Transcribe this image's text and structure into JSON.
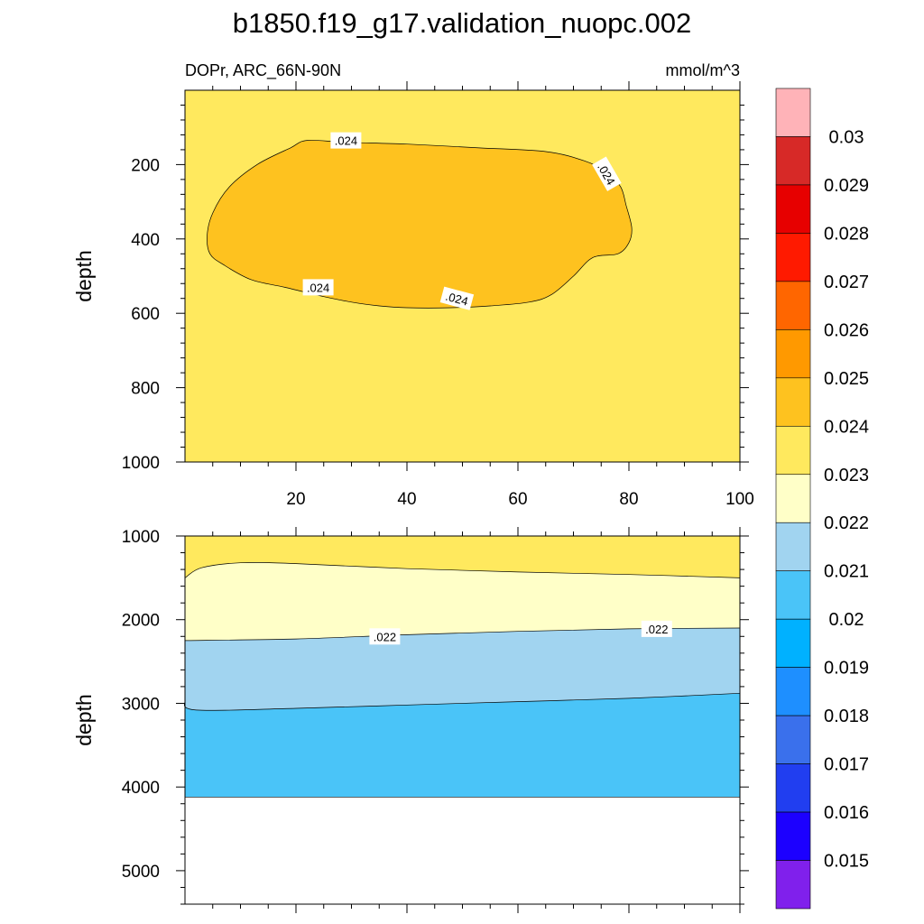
{
  "chart_data": {
    "type": "heatmap",
    "title": "b1850.f19_g17.validation_nuopc.002",
    "subtitle_left": "DOPr, ARC_66N-90N",
    "subtitle_right": "mmol/m^3",
    "x_range": [
      0,
      100
    ],
    "x_ticks": [
      20,
      40,
      60,
      80,
      100
    ],
    "x_tick_labels": [
      "20",
      "40",
      "60",
      "80",
      "100"
    ],
    "panels": [
      {
        "name": "upper",
        "ylabel": "depth",
        "y_range": [
          0,
          1000
        ],
        "y_ticks": [
          200,
          400,
          600,
          800,
          1000
        ],
        "y_tick_labels": [
          "200",
          "400",
          "600",
          "800",
          "1000"
        ],
        "background_fill": "#FFE95E",
        "regions": [
          {
            "level": "0.024-0.025",
            "color": "#FEC21F",
            "outline": [
              [
                4,
                390
              ],
              [
                5,
                330
              ],
              [
                8,
                260
              ],
              [
                13,
                200
              ],
              [
                19,
                155
              ],
              [
                22,
                135
              ],
              [
                29,
                140
              ],
              [
                40,
                145
              ],
              [
                53,
                155
              ],
              [
                65,
                165
              ],
              [
                72,
                190
              ],
              [
                76,
                220
              ],
              [
                78.5,
                260
              ],
              [
                79.5,
                310
              ],
              [
                80.5,
                370
              ],
              [
                80,
                410
              ],
              [
                78,
                440
              ],
              [
                73.5,
                450
              ],
              [
                70,
                500
              ],
              [
                66,
                550
              ],
              [
                62,
                570
              ],
              [
                55,
                580
              ],
              [
                48,
                585
              ],
              [
                40,
                585
              ],
              [
                35,
                580
              ],
              [
                30,
                570
              ],
              [
                25,
                555
              ],
              [
                18,
                530
              ],
              [
                12,
                510
              ],
              [
                7,
                470
              ],
              [
                4.5,
                440
              ]
            ]
          }
        ],
        "contour_labels": [
          {
            "text": ".024",
            "x": 29,
            "y": 135,
            "angle": 0
          },
          {
            "text": ".024",
            "x": 76,
            "y": 225,
            "angle": 60
          },
          {
            "text": ".024",
            "x": 24,
            "y": 530,
            "angle": 0
          },
          {
            "text": ".024",
            "x": 49,
            "y": 560,
            "angle": 15
          }
        ]
      },
      {
        "name": "lower",
        "ylabel": "depth",
        "y_range": [
          1000,
          5400
        ],
        "y_ticks": [
          1000,
          2000,
          3000,
          4000,
          5000
        ],
        "y_tick_labels": [
          "1000",
          "2000",
          "3000",
          "4000",
          "5000"
        ],
        "bottom_depth": 4120,
        "bands": [
          {
            "level": "0.023-0.024",
            "color": "#FFE95E",
            "upper": [
              [
                0,
                1000
              ],
              [
                100,
                1000
              ]
            ],
            "lower": [
              [
                0,
                1500
              ],
              [
                3,
                1380
              ],
              [
                10,
                1320
              ],
              [
                20,
                1330
              ],
              [
                40,
                1390
              ],
              [
                60,
                1430
              ],
              [
                80,
                1460
              ],
              [
                100,
                1500
              ]
            ]
          },
          {
            "level": "0.022-0.023",
            "color": "#FFFFC8",
            "upper": [
              [
                0,
                1500
              ],
              [
                3,
                1380
              ],
              [
                10,
                1320
              ],
              [
                20,
                1330
              ],
              [
                40,
                1390
              ],
              [
                60,
                1430
              ],
              [
                80,
                1460
              ],
              [
                100,
                1500
              ]
            ],
            "lower": [
              [
                0,
                2250
              ],
              [
                20,
                2230
              ],
              [
                40,
                2180
              ],
              [
                60,
                2140
              ],
              [
                80,
                2110
              ],
              [
                100,
                2100
              ]
            ]
          },
          {
            "level": "0.021-0.022",
            "color": "#A1D4F0",
            "upper": [
              [
                0,
                2250
              ],
              [
                20,
                2230
              ],
              [
                40,
                2180
              ],
              [
                60,
                2140
              ],
              [
                80,
                2110
              ],
              [
                100,
                2100
              ]
            ],
            "lower": [
              [
                0,
                2960
              ],
              [
                2,
                3080
              ],
              [
                20,
                3060
              ],
              [
                40,
                3020
              ],
              [
                60,
                2980
              ],
              [
                80,
                2940
              ],
              [
                100,
                2880
              ]
            ]
          },
          {
            "level": "0.020-0.021",
            "color": "#4AC4F8",
            "upper": [
              [
                0,
                2960
              ],
              [
                2,
                3080
              ],
              [
                20,
                3060
              ],
              [
                40,
                3020
              ],
              [
                60,
                2980
              ],
              [
                80,
                2940
              ],
              [
                100,
                2880
              ]
            ],
            "lower": [
              [
                0,
                4120
              ],
              [
                100,
                4120
              ]
            ]
          }
        ],
        "contour_labels": [
          {
            "text": ".022",
            "x": 36,
            "y": 2200,
            "angle": 0
          },
          {
            "text": ".022",
            "x": 85,
            "y": 2110,
            "angle": 0
          }
        ]
      }
    ],
    "colorbar": {
      "colors": [
        "#FFB3B8",
        "#D72927",
        "#E70000",
        "#FF1A00",
        "#FF6600",
        "#FF9900",
        "#FEC21F",
        "#FFE95E",
        "#FFFFC8",
        "#A1D4F0",
        "#4AC4F8",
        "#00B1FF",
        "#1E8FFF",
        "#3A70EC",
        "#213EF0",
        "#1C00FF",
        "#8020EC"
      ],
      "labels": [
        "0.03",
        "0.029",
        "0.028",
        "0.027",
        "0.026",
        "0.025",
        "0.024",
        "0.023",
        "0.022",
        "0.021",
        "0.02",
        "0.019",
        "0.018",
        "0.017",
        "0.016",
        "0.015"
      ]
    }
  }
}
